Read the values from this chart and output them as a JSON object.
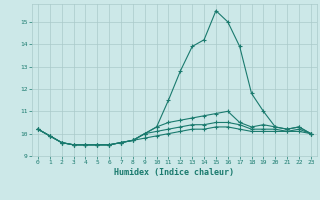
{
  "x": [
    0,
    1,
    2,
    3,
    4,
    5,
    6,
    7,
    8,
    9,
    10,
    11,
    12,
    13,
    14,
    15,
    16,
    17,
    18,
    19,
    20,
    21,
    22,
    23
  ],
  "line1": [
    10.2,
    9.9,
    9.6,
    9.5,
    9.5,
    9.5,
    9.5,
    9.6,
    9.7,
    10.0,
    10.3,
    11.5,
    12.8,
    13.9,
    14.2,
    15.5,
    15.0,
    13.9,
    11.8,
    11.0,
    10.3,
    10.2,
    10.3,
    10.0
  ],
  "line2": [
    10.2,
    9.9,
    9.6,
    9.5,
    9.5,
    9.5,
    9.5,
    9.6,
    9.7,
    10.0,
    10.3,
    10.5,
    10.6,
    10.7,
    10.8,
    10.9,
    11.0,
    10.5,
    10.3,
    10.4,
    10.3,
    10.2,
    10.3,
    10.0
  ],
  "line3": [
    10.2,
    9.9,
    9.6,
    9.5,
    9.5,
    9.5,
    9.5,
    9.6,
    9.7,
    10.0,
    10.1,
    10.2,
    10.3,
    10.4,
    10.4,
    10.5,
    10.5,
    10.4,
    10.2,
    10.2,
    10.2,
    10.1,
    10.2,
    10.0
  ],
  "line4": [
    10.2,
    9.9,
    9.6,
    9.5,
    9.5,
    9.5,
    9.5,
    9.6,
    9.7,
    9.8,
    9.9,
    10.0,
    10.1,
    10.2,
    10.2,
    10.3,
    10.3,
    10.2,
    10.1,
    10.1,
    10.1,
    10.1,
    10.1,
    10.0
  ],
  "bg_color": "#cce8e8",
  "grid_color": "#aacaca",
  "line_color": "#1a7a6e",
  "xlabel": "Humidex (Indice chaleur)",
  "ylim": [
    9.0,
    15.8
  ],
  "xlim": [
    -0.5,
    23.5
  ],
  "yticks": [
    9,
    10,
    11,
    12,
    13,
    14,
    15
  ],
  "xticks": [
    0,
    1,
    2,
    3,
    4,
    5,
    6,
    7,
    8,
    9,
    10,
    11,
    12,
    13,
    14,
    15,
    16,
    17,
    18,
    19,
    20,
    21,
    22,
    23
  ]
}
